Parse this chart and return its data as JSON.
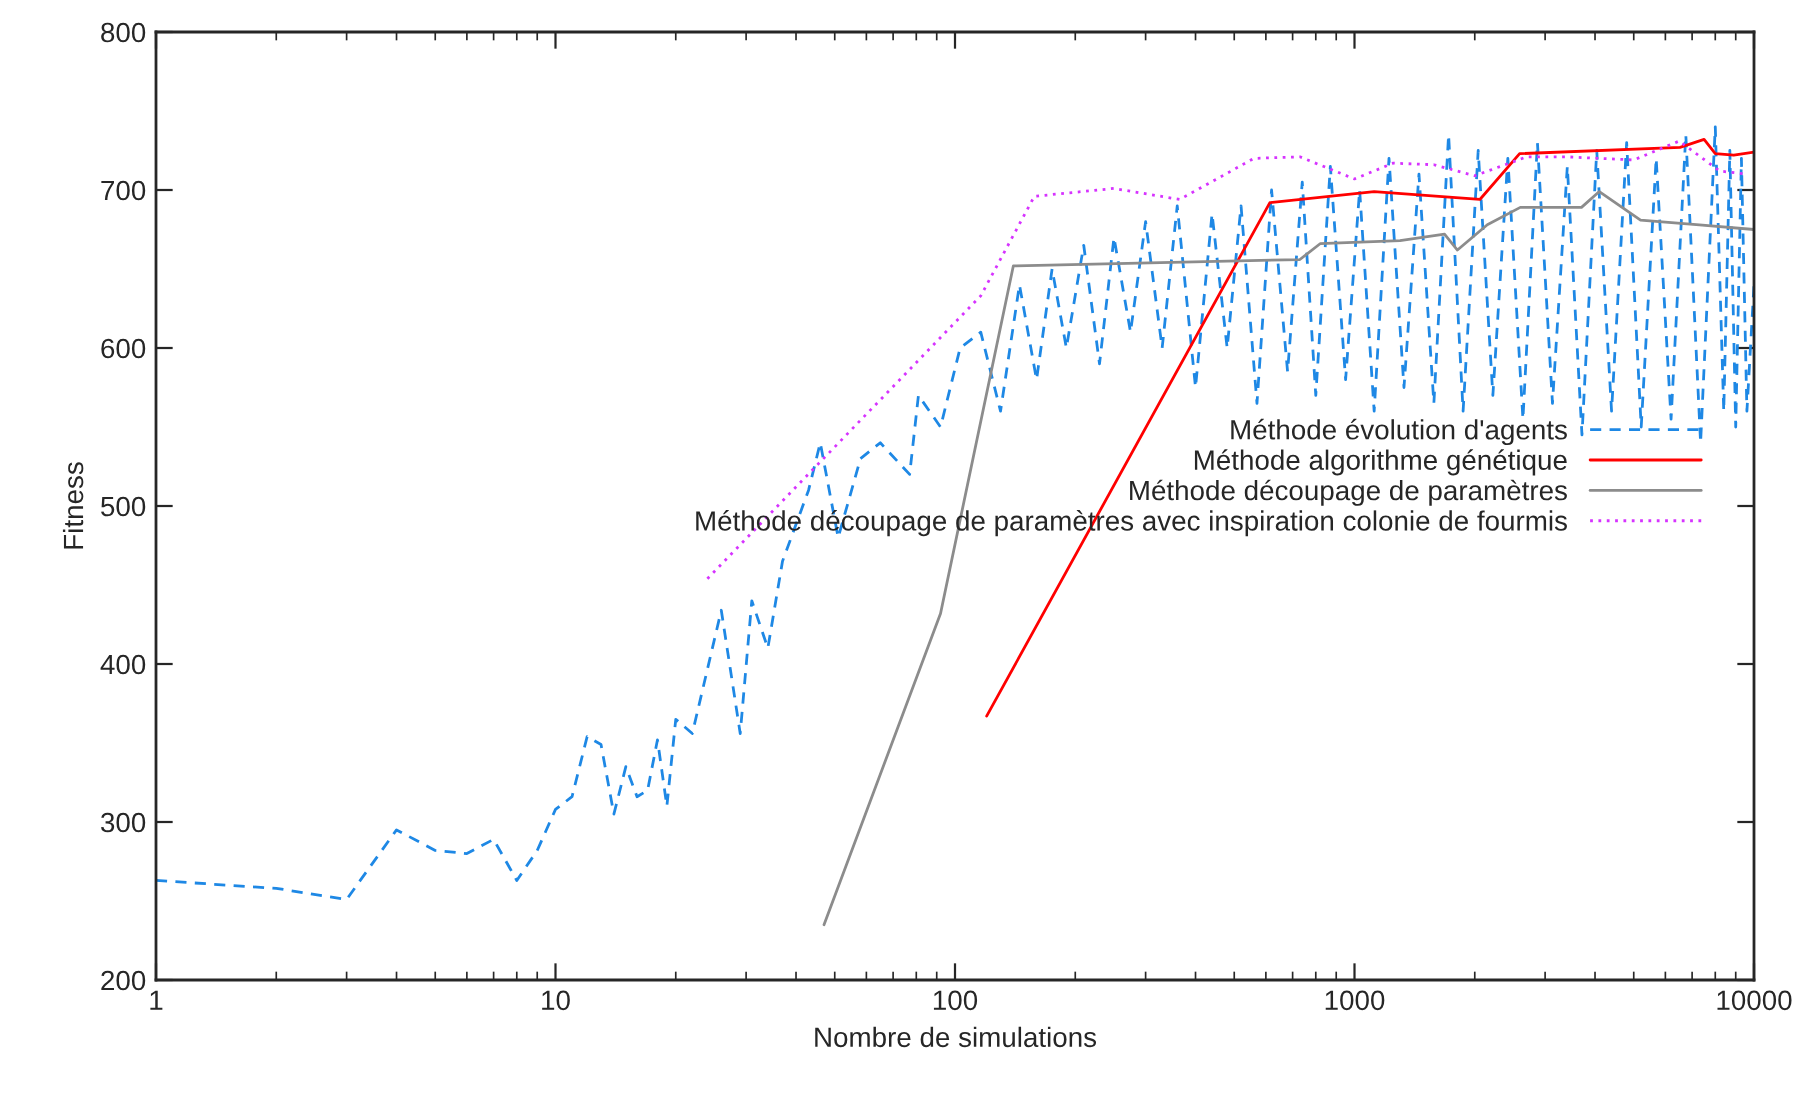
{
  "chart_data": {
    "type": "line",
    "xlabel": "Nombre de simulations",
    "ylabel": "Fitness",
    "log": "x",
    "xlim": [
      1,
      10000
    ],
    "xticks": [
      1,
      10,
      100,
      1000,
      10000
    ],
    "ylim": [
      200,
      800
    ],
    "yticks": [
      200,
      300,
      400,
      500,
      600,
      700,
      800
    ],
    "grid": false,
    "legend": "right",
    "marker": "none",
    "series": [
      {
        "name": "Méthode évolution d'agents",
        "color": "#1e88e5",
        "line_style": "dashed",
        "x": [
          1,
          2,
          3,
          4,
          5,
          6,
          7,
          8,
          9,
          10,
          11,
          12,
          13,
          14,
          15,
          16,
          17,
          18,
          19,
          20,
          22,
          26,
          29,
          31,
          34,
          37,
          43,
          46,
          51,
          58,
          65,
          77,
          81,
          92,
          103,
          116,
          130,
          145,
          160,
          175,
          190,
          210,
          230,
          250,
          275,
          300,
          330,
          360,
          400,
          440,
          480,
          520,
          570,
          620,
          680,
          740,
          800,
          870,
          950,
          1030,
          1120,
          1220,
          1330,
          1450,
          1580,
          1720,
          1870,
          2040,
          2220,
          2420,
          2640,
          2870,
          3130,
          3410,
          3710,
          4040,
          4400,
          4800,
          5220,
          5690,
          6200,
          6750,
          7350,
          8000,
          8400,
          8700,
          9000,
          9300,
          9600,
          10000
        ],
        "values": [
          263,
          258,
          251,
          295,
          282,
          280,
          289,
          263,
          282,
          308,
          316,
          354,
          349,
          305,
          335,
          316,
          320,
          352,
          310,
          365,
          356,
          434,
          356,
          440,
          410,
          465,
          510,
          540,
          480,
          530,
          540,
          520,
          570,
          550,
          600,
          610,
          560,
          640,
          580,
          650,
          600,
          665,
          590,
          670,
          610,
          680,
          600,
          690,
          575,
          685,
          600,
          690,
          565,
          700,
          585,
          705,
          570,
          715,
          580,
          700,
          560,
          720,
          575,
          710,
          565,
          735,
          560,
          725,
          570,
          720,
          555,
          730,
          565,
          715,
          545,
          725,
          560,
          730,
          550,
          720,
          555,
          735,
          540,
          740,
          560,
          725,
          550,
          720,
          560,
          640
        ]
      },
      {
        "name": "Méthode algorithme génétique",
        "color": "#ff0000",
        "line_style": "solid",
        "x": [
          120,
          614,
          1120,
          2060,
          2590,
          6530,
          7500,
          8000,
          8900,
          10000
        ],
        "values": [
          367,
          692,
          699,
          694,
          723,
          727,
          732,
          723,
          722,
          724
        ]
      },
      {
        "name": "Méthode découpage de paramètres",
        "color": "#8c8c8c",
        "line_style": "solid",
        "x": [
          47,
          92,
          140,
          730,
          820,
          1300,
          1680,
          1810,
          2150,
          2600,
          3700,
          4100,
          5200,
          7300,
          10000
        ],
        "values": [
          235,
          432,
          652,
          656,
          666,
          668,
          672,
          662,
          678,
          689,
          689,
          699,
          681,
          678,
          675
        ]
      },
      {
        "name": "Méthode découpage de paramètres avec inspiration colonie de fourmis",
        "color": "#d633ff",
        "line_style": "dotted",
        "x": [
          24,
          116,
          158,
          250,
          365,
          560,
          730,
          1000,
          1250,
          1580,
          2000,
          2700,
          3400,
          5000,
          6500,
          8200,
          9600
        ],
        "values": [
          454,
          633,
          696,
          701,
          694,
          720,
          721,
          707,
          717,
          716,
          709,
          721,
          721,
          719,
          731,
          712,
          710
        ]
      }
    ]
  }
}
